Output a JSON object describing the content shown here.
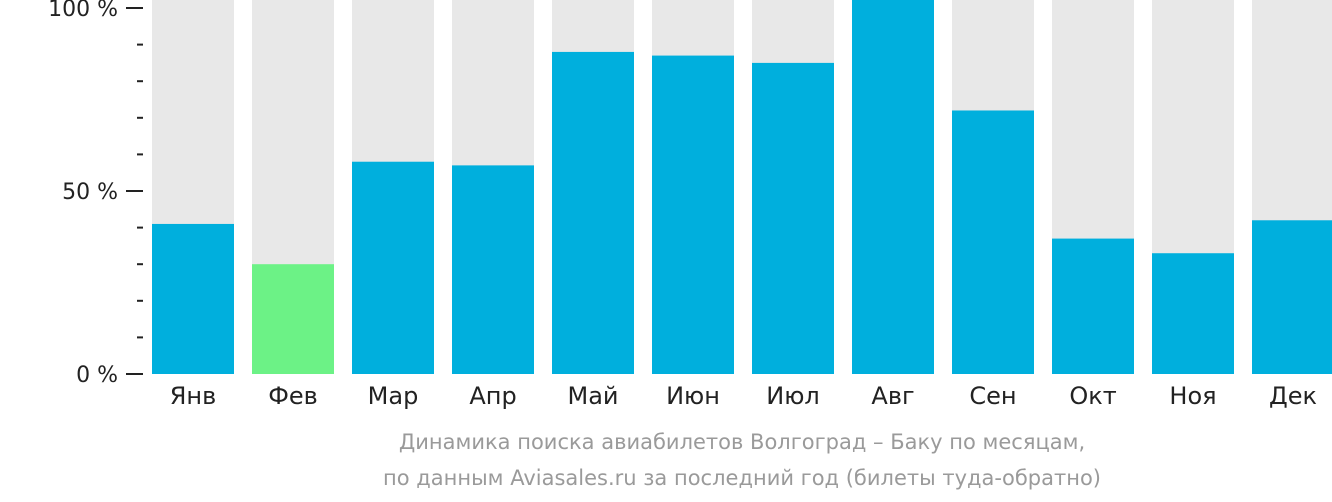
{
  "colors": {
    "bar": "#00afdd",
    "bar_highlight": "#6cf286",
    "track": "#e8e8e8",
    "axis": "#222222",
    "caption": "#9a9a9a"
  },
  "caption": {
    "line1": "Динамика поиска авиабилетов Волгоград – Баку по месяцам,",
    "line2": "по данным Aviasales.ru за последний год (билеты туда-обратно)"
  },
  "chart_data": {
    "type": "bar",
    "categories": [
      "Янв",
      "Фев",
      "Мар",
      "Апр",
      "Май",
      "Июн",
      "Июл",
      "Авг",
      "Сен",
      "Окт",
      "Ноя",
      "Дек"
    ],
    "values": [
      41,
      30,
      58,
      57,
      88,
      87,
      85,
      100,
      72,
      37,
      33,
      42
    ],
    "highlight_index": 1,
    "ylim": [
      0,
      100
    ],
    "yticks": [
      {
        "value": 100,
        "label": "100 %"
      },
      {
        "value": 50,
        "label": "50 %"
      },
      {
        "value": 0,
        "label": "0 %"
      }
    ],
    "minor_tick_step": 10,
    "title": "",
    "xlabel": "",
    "ylabel": "",
    "grid": false
  }
}
